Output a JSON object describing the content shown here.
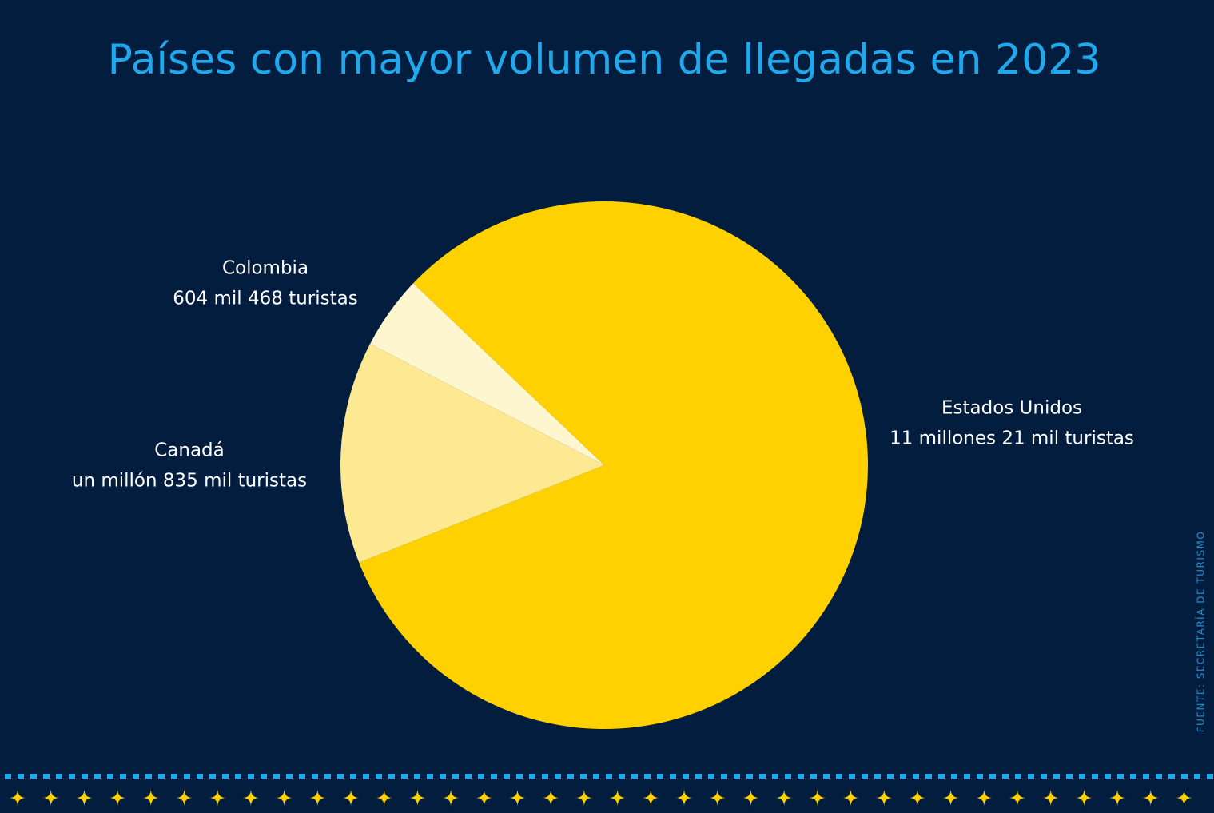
{
  "chart_data": {
    "type": "pie",
    "title": "Países con mayor volumen de llegadas en 2023",
    "source": "FUENTE: SECRETARÍA DE TURISMO",
    "categories": [
      "Estados Unidos",
      "Canadá",
      "Colombia"
    ],
    "values": [
      11021000,
      1835000,
      604468
    ],
    "value_labels": [
      "11 millones 21 mil turistas",
      "un millón 835 mil turistas",
      "604 mil 468 turistas"
    ],
    "colors": [
      "#ffd100",
      "#fde992",
      "#fef6cf"
    ]
  }
}
